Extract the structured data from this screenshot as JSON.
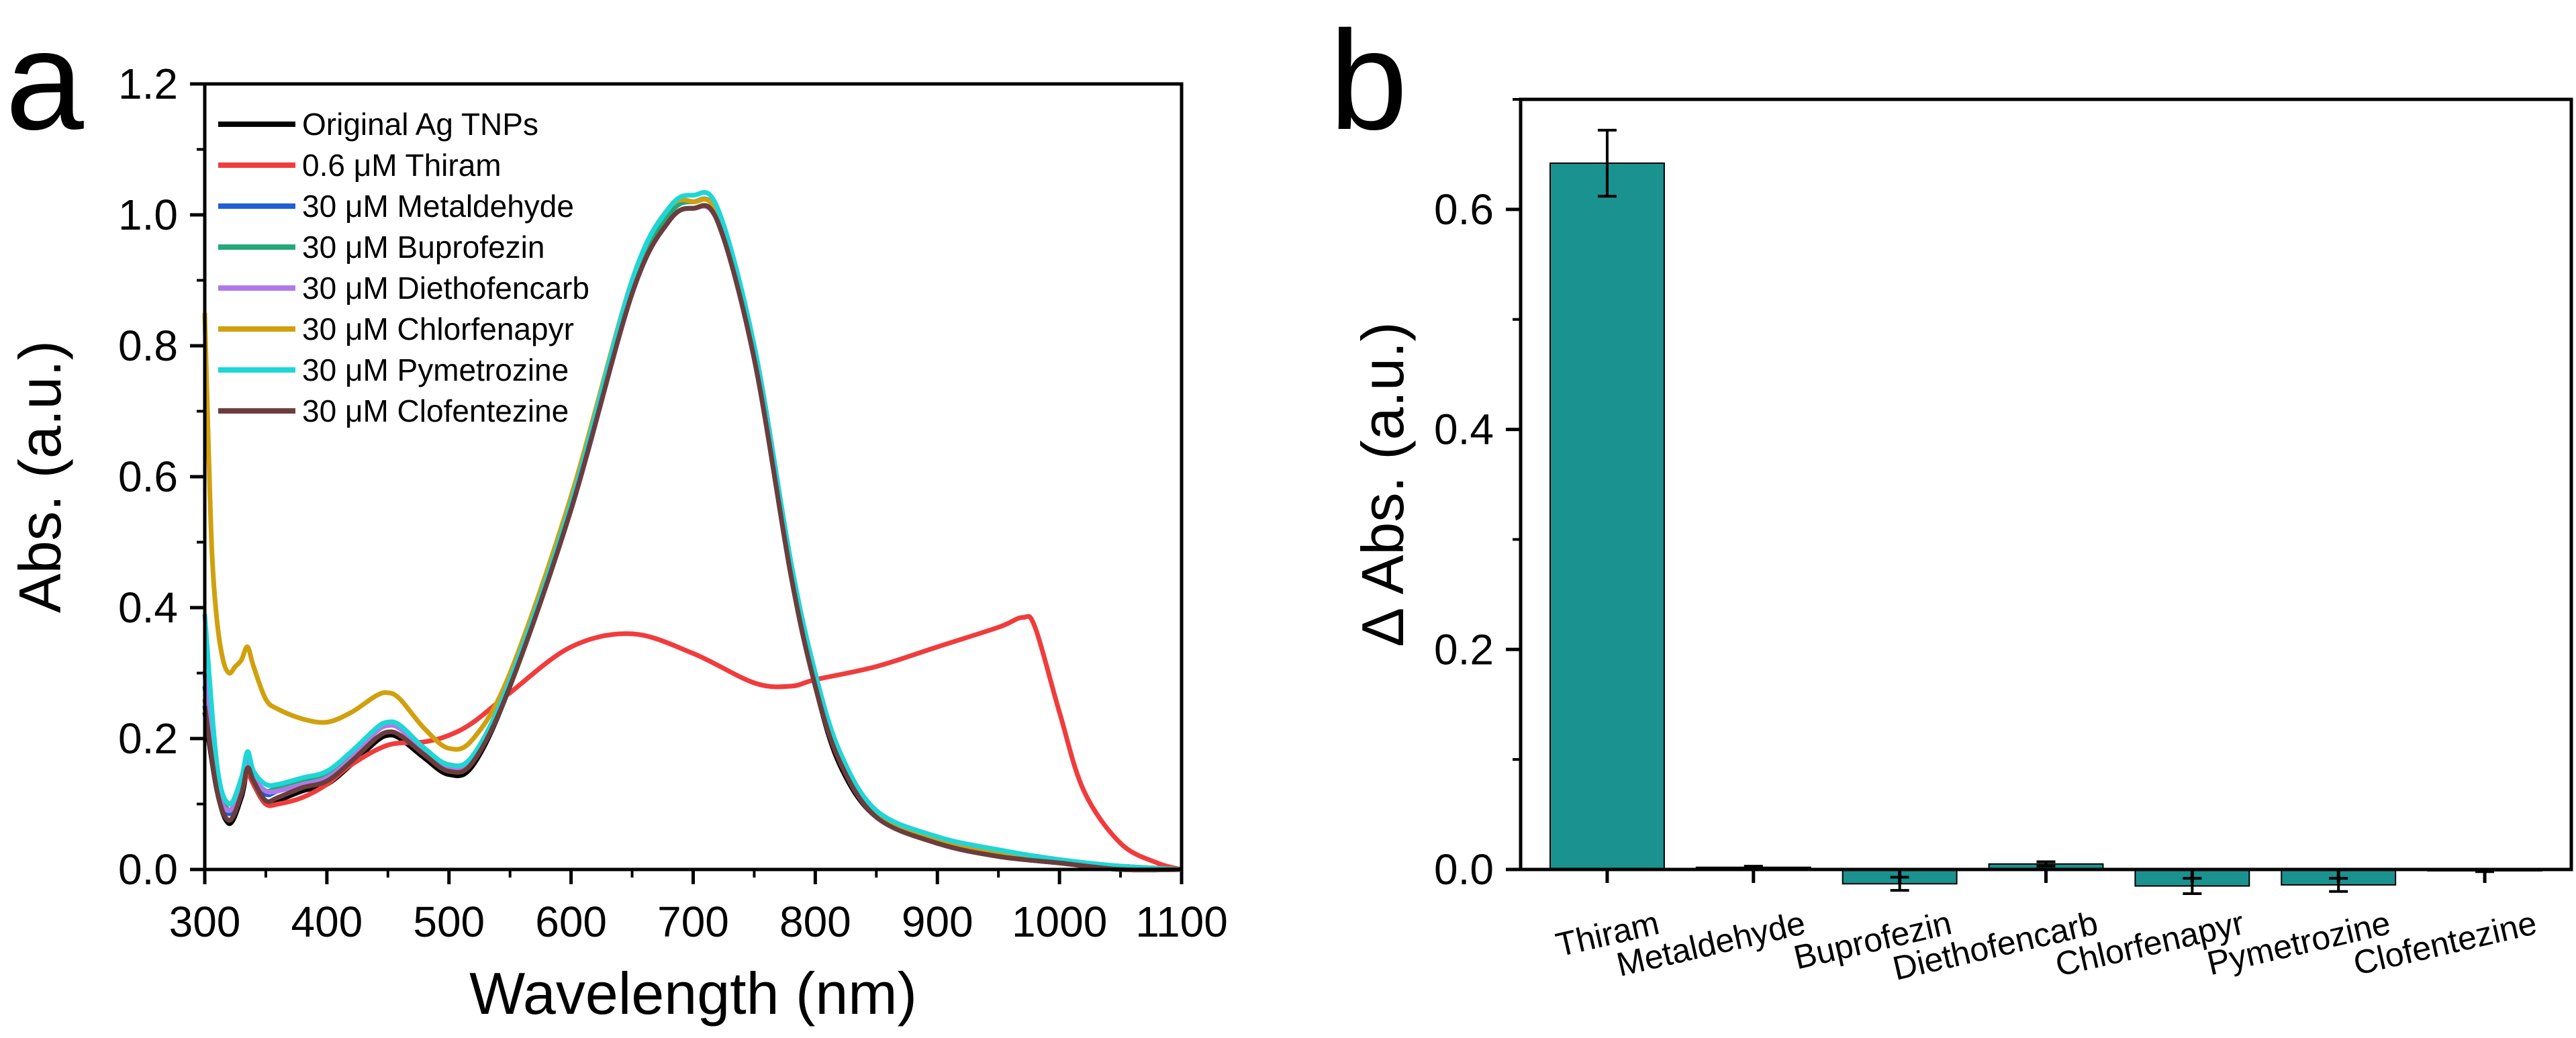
{
  "chart_data": [
    {
      "panel": "a",
      "type": "line",
      "xlabel": "Wavelength (nm)",
      "ylabel": "Abs. (a.u.)",
      "xlim": [
        300,
        1100
      ],
      "ylim": [
        0.0,
        1.2
      ],
      "xticks": [
        "300",
        "400",
        "500",
        "600",
        "700",
        "800",
        "900",
        "1000",
        "1100"
      ],
      "yticks": [
        "0.0",
        "0.2",
        "0.4",
        "0.6",
        "0.8",
        "1.0",
        "1.2"
      ],
      "legend": "top-left",
      "series": [
        {
          "name": "Original Ag TNPs",
          "color": "#000000",
          "x": [
            300,
            310,
            320,
            330,
            335,
            340,
            350,
            360,
            380,
            400,
            420,
            440,
            450,
            460,
            480,
            500,
            520,
            550,
            600,
            650,
            680,
            700,
            720,
            750,
            780,
            800,
            820,
            850,
            900,
            950,
            1000,
            1050,
            1100
          ],
          "y": [
            0.24,
            0.12,
            0.07,
            0.11,
            0.15,
            0.13,
            0.1,
            0.105,
            0.12,
            0.13,
            0.16,
            0.195,
            0.205,
            0.2,
            0.17,
            0.145,
            0.16,
            0.28,
            0.55,
            0.88,
            0.99,
            1.01,
            0.99,
            0.78,
            0.45,
            0.28,
            0.16,
            0.08,
            0.04,
            0.02,
            0.01,
            0.0,
            0.0
          ]
        },
        {
          "name": "0.6 μM Thiram",
          "color": "#f03c3c",
          "x": [
            300,
            310,
            320,
            330,
            335,
            340,
            350,
            360,
            380,
            400,
            420,
            450,
            480,
            500,
            520,
            550,
            600,
            650,
            700,
            750,
            780,
            800,
            850,
            900,
            950,
            970,
            980,
            1000,
            1020,
            1050,
            1080,
            1100
          ],
          "y": [
            0.26,
            0.14,
            0.09,
            0.12,
            0.145,
            0.13,
            0.1,
            0.1,
            0.11,
            0.13,
            0.16,
            0.19,
            0.195,
            0.205,
            0.225,
            0.27,
            0.34,
            0.36,
            0.33,
            0.285,
            0.28,
            0.29,
            0.31,
            0.34,
            0.37,
            0.385,
            0.37,
            0.24,
            0.12,
            0.04,
            0.01,
            0.0
          ]
        },
        {
          "name": "30 μM Metaldehyde",
          "color": "#1f5fd6",
          "x": [
            300,
            310,
            320,
            330,
            335,
            340,
            350,
            360,
            380,
            400,
            420,
            440,
            450,
            460,
            480,
            500,
            520,
            550,
            600,
            650,
            680,
            700,
            720,
            750,
            780,
            800,
            820,
            850,
            900,
            950,
            1000,
            1050,
            1100
          ],
          "y": [
            0.28,
            0.13,
            0.085,
            0.13,
            0.17,
            0.14,
            0.115,
            0.12,
            0.13,
            0.14,
            0.17,
            0.21,
            0.22,
            0.215,
            0.18,
            0.155,
            0.17,
            0.29,
            0.56,
            0.89,
            1.0,
            1.02,
            1.0,
            0.79,
            0.46,
            0.29,
            0.17,
            0.085,
            0.045,
            0.025,
            0.012,
            0.005,
            0.0
          ]
        },
        {
          "name": "30 μM Buprofezin",
          "color": "#23a878",
          "x": [
            300,
            310,
            320,
            330,
            335,
            340,
            350,
            360,
            380,
            400,
            420,
            440,
            450,
            460,
            480,
            500,
            520,
            550,
            600,
            650,
            680,
            700,
            720,
            750,
            780,
            800,
            820,
            850,
            900,
            950,
            1000,
            1050,
            1100
          ],
          "y": [
            0.3,
            0.14,
            0.09,
            0.13,
            0.17,
            0.14,
            0.12,
            0.125,
            0.135,
            0.145,
            0.175,
            0.215,
            0.225,
            0.22,
            0.185,
            0.16,
            0.175,
            0.29,
            0.56,
            0.89,
            1.0,
            1.02,
            1.0,
            0.79,
            0.46,
            0.29,
            0.17,
            0.085,
            0.045,
            0.025,
            0.012,
            0.005,
            0.0
          ]
        },
        {
          "name": "30 μM Diethofencarb",
          "color": "#b07ae6",
          "x": [
            300,
            310,
            320,
            330,
            335,
            340,
            350,
            360,
            380,
            400,
            420,
            440,
            450,
            460,
            480,
            500,
            520,
            550,
            600,
            650,
            680,
            700,
            720,
            750,
            780,
            800,
            820,
            850,
            900,
            950,
            1000,
            1050,
            1100
          ],
          "y": [
            0.3,
            0.13,
            0.09,
            0.13,
            0.165,
            0.14,
            0.12,
            0.12,
            0.13,
            0.14,
            0.17,
            0.21,
            0.22,
            0.215,
            0.18,
            0.155,
            0.17,
            0.29,
            0.55,
            0.88,
            0.99,
            1.01,
            0.99,
            0.8,
            0.47,
            0.3,
            0.18,
            0.09,
            0.05,
            0.03,
            0.015,
            0.005,
            0.0
          ]
        },
        {
          "name": "30 μM Chlorfenapyr",
          "color": "#d1a00e",
          "x": [
            300,
            303,
            306,
            310,
            315,
            320,
            325,
            330,
            335,
            340,
            350,
            360,
            380,
            400,
            420,
            440,
            450,
            460,
            480,
            500,
            520,
            550,
            600,
            650,
            680,
            700,
            720,
            750,
            780,
            800,
            820,
            850,
            900,
            950,
            1000,
            1050,
            1100
          ],
          "y": [
            0.85,
            0.65,
            0.48,
            0.38,
            0.32,
            0.3,
            0.31,
            0.32,
            0.34,
            0.31,
            0.26,
            0.245,
            0.23,
            0.225,
            0.24,
            0.265,
            0.27,
            0.26,
            0.215,
            0.185,
            0.2,
            0.3,
            0.57,
            0.9,
            1.01,
            1.02,
            1.0,
            0.79,
            0.46,
            0.29,
            0.17,
            0.085,
            0.045,
            0.025,
            0.012,
            0.005,
            0.0
          ]
        },
        {
          "name": "30 μM Pymetrozine",
          "color": "#1ed6d6",
          "x": [
            300,
            310,
            320,
            330,
            335,
            340,
            350,
            360,
            380,
            400,
            420,
            440,
            450,
            460,
            480,
            500,
            520,
            550,
            600,
            650,
            680,
            700,
            720,
            750,
            780,
            800,
            820,
            850,
            900,
            950,
            1000,
            1050,
            1100
          ],
          "y": [
            0.39,
            0.16,
            0.1,
            0.14,
            0.18,
            0.15,
            0.13,
            0.13,
            0.14,
            0.15,
            0.18,
            0.215,
            0.225,
            0.22,
            0.185,
            0.16,
            0.175,
            0.29,
            0.56,
            0.9,
            1.01,
            1.03,
            1.01,
            0.8,
            0.47,
            0.3,
            0.18,
            0.09,
            0.05,
            0.03,
            0.015,
            0.005,
            0.0
          ]
        },
        {
          "name": "30 μM Clofentezine",
          "color": "#6b3d3d",
          "x": [
            300,
            310,
            320,
            330,
            335,
            340,
            350,
            360,
            380,
            400,
            420,
            440,
            450,
            460,
            480,
            500,
            520,
            550,
            600,
            650,
            680,
            700,
            720,
            750,
            780,
            800,
            820,
            850,
            900,
            950,
            1000,
            1050,
            1100
          ],
          "y": [
            0.25,
            0.12,
            0.075,
            0.115,
            0.155,
            0.135,
            0.105,
            0.11,
            0.125,
            0.135,
            0.165,
            0.2,
            0.21,
            0.205,
            0.175,
            0.15,
            0.165,
            0.28,
            0.55,
            0.88,
            0.99,
            1.01,
            0.99,
            0.78,
            0.45,
            0.28,
            0.165,
            0.08,
            0.04,
            0.02,
            0.01,
            0.0,
            0.0
          ]
        }
      ]
    },
    {
      "panel": "b",
      "type": "bar",
      "xlabel": "",
      "ylabel": "Δ Abs. (a.u.)",
      "ylim": [
        0.0,
        0.7
      ],
      "yticks": [
        "0.0",
        "0.2",
        "0.4",
        "0.6"
      ],
      "bar_color": "#1a9290",
      "categories": [
        "Thiram",
        "Metaldehyde",
        "Buprofezin",
        "Diethofencarb",
        "Chlorfenapyr",
        "Pymetrozine",
        "Clofentezine"
      ],
      "values": [
        0.642,
        0.002,
        -0.013,
        0.005,
        -0.015,
        -0.014,
        -0.001
      ],
      "errors": [
        0.03,
        0.001,
        0.006,
        0.002,
        0.007,
        0.006,
        0.001
      ]
    }
  ]
}
